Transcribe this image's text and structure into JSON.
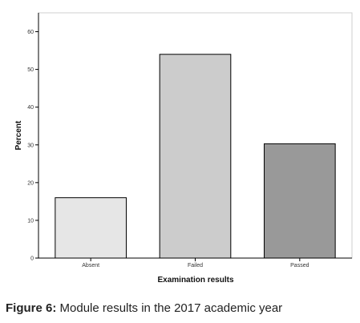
{
  "chart_data": {
    "type": "bar",
    "categories": [
      "Absent",
      "Failed",
      "Passed"
    ],
    "values": [
      16,
      54,
      30.3
    ],
    "colors": [
      "#e6e6e6",
      "#cccccc",
      "#999999"
    ],
    "xlabel": "Examination results",
    "ylabel": "Percent",
    "ylim": [
      0,
      65
    ],
    "yticks": [
      0,
      10,
      20,
      30,
      40,
      50,
      60
    ],
    "grid": false
  },
  "caption": {
    "label": "Figure 6:",
    "text": " Module results in the 2017 academic year"
  }
}
